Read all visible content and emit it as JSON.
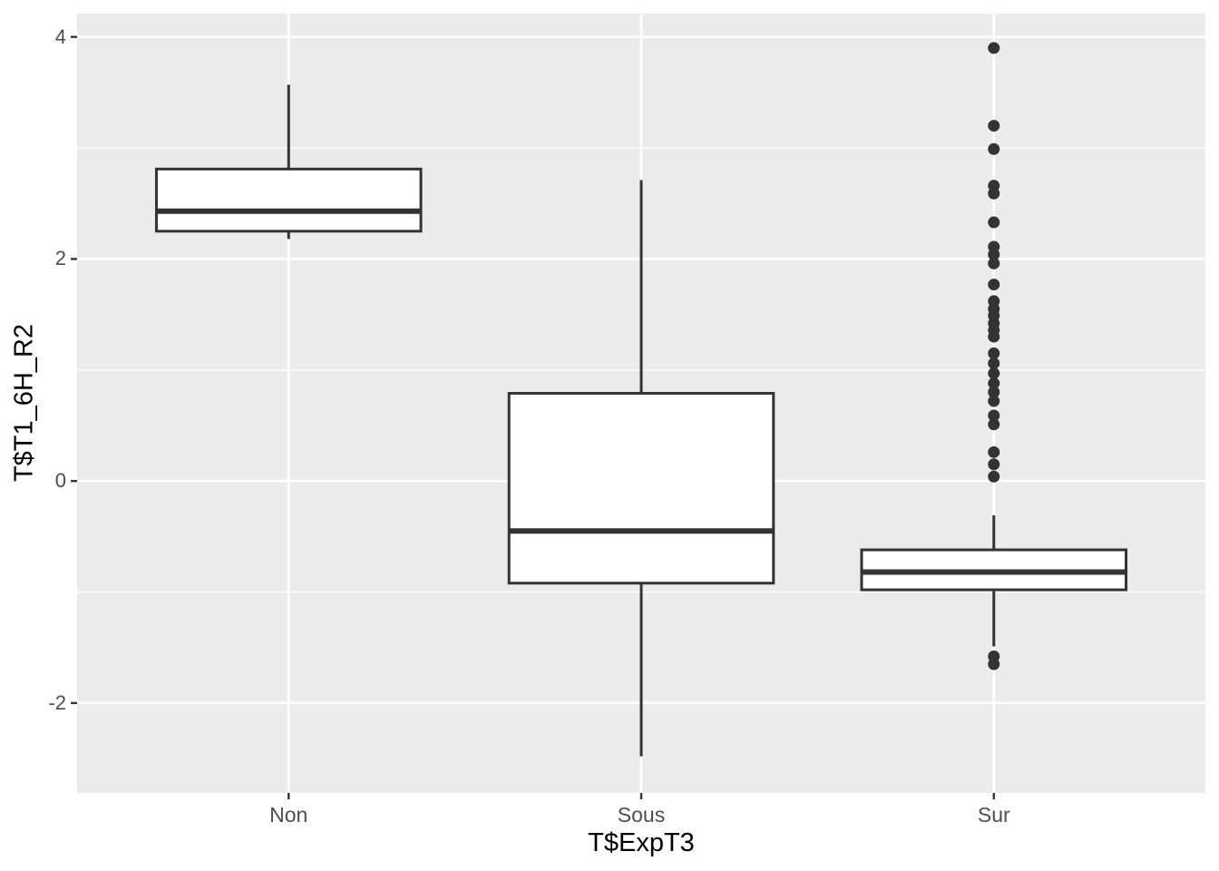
{
  "figure": {
    "background": "#FFFFFF"
  },
  "chart_data": {
    "type": "boxplot",
    "title": "",
    "xlabel": "T$ExpT3",
    "ylabel": "T$T1_6H_R2",
    "categories": [
      "Non",
      "Sous",
      "Sur"
    ],
    "y_axis": {
      "major_ticks": [
        4,
        2,
        0,
        -2
      ],
      "tick_labels": [
        "4",
        "2",
        "0",
        "-2"
      ],
      "minor_ticks": [
        3,
        1,
        -1
      ],
      "ylim": [
        -2.81,
        4.21
      ]
    },
    "x_axis": {
      "tick_labels": [
        "Non",
        "Sous",
        "Sur"
      ]
    },
    "boxes": [
      {
        "category": "Non",
        "whisker_low": 2.18,
        "q1": 2.25,
        "median": 2.43,
        "q3": 2.81,
        "whisker_high": 3.57,
        "outliers": []
      },
      {
        "category": "Sous",
        "whisker_low": -2.48,
        "q1": -0.92,
        "median": -0.45,
        "q3": 0.79,
        "whisker_high": 2.71,
        "outliers": []
      },
      {
        "category": "Sur",
        "whisker_low": -1.49,
        "q1": -0.98,
        "median": -0.82,
        "q3": -0.62,
        "whisker_high": -0.31,
        "outliers": [
          3.9,
          3.2,
          2.99,
          2.66,
          2.59,
          2.33,
          2.11,
          2.04,
          1.96,
          1.77,
          1.62,
          1.55,
          1.49,
          1.42,
          1.36,
          1.3,
          1.15,
          1.06,
          0.97,
          0.88,
          0.8,
          0.72,
          0.59,
          0.51,
          0.26,
          0.15,
          0.04,
          -1.58,
          -1.65
        ]
      }
    ],
    "legend": "none",
    "grid": "on",
    "box_width_fraction": 0.75,
    "style": {
      "panel_bg": "#EBEBEB",
      "grid_color": "#FFFFFF",
      "box_fill": "#FFFFFF",
      "box_stroke": "#333333",
      "outlier_color": "#333333",
      "axis_text_color": "#4D4D4D",
      "axis_title_color": "#000000",
      "tick_mark_color": "#333333"
    }
  }
}
